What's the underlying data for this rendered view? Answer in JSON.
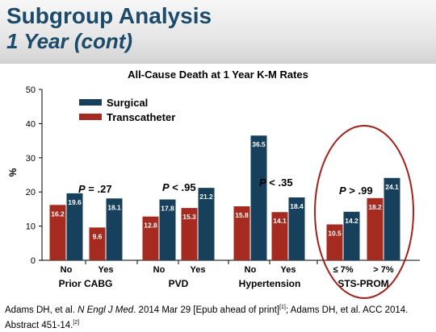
{
  "header": {
    "title": "Subgroup Analysis",
    "subtitle": "1 Year (cont)"
  },
  "colors": {
    "surgical": "#17405c",
    "transcatheter": "#a52a1f",
    "title": "#1b4a6b",
    "highlight_ellipse": "#a2221a"
  },
  "chart_data": {
    "type": "bar",
    "title": "All-Cause Death at 1 Year K-M Rates",
    "ylabel": "%",
    "xlabel": "",
    "ylim": [
      0,
      50
    ],
    "yticks": [
      "0",
      "10",
      "20",
      "30",
      "40",
      "50"
    ],
    "grid": false,
    "legend_placement": "top-left",
    "categories": [
      "No",
      "Yes",
      "No",
      "Yes",
      "No",
      "Yes",
      "≤ 7%",
      "> 7%"
    ],
    "groups": [
      {
        "label": "Prior CABG",
        "p_prefix": "P",
        "p_value": " = .27"
      },
      {
        "label": "PVD",
        "p_prefix": "P",
        "p_value": " < .95"
      },
      {
        "label": "Hypertension",
        "p_prefix": "P",
        "p_value": " < .35"
      },
      {
        "label": "STS-PROM",
        "p_prefix": "P",
        "p_value": " > .99"
      }
    ],
    "series": [
      {
        "name": "Transcatheter",
        "values": [
          16.2,
          9.6,
          12.8,
          15.3,
          15.8,
          14.1,
          10.5,
          18.2
        ],
        "labels": [
          "16.2",
          "9.6",
          "12.8",
          "15.3",
          "15.8",
          "14.1",
          "10.5",
          "18.2"
        ]
      },
      {
        "name": "Surgical",
        "values": [
          19.6,
          18.1,
          17.8,
          21.2,
          36.5,
          18.4,
          14.2,
          24.1
        ],
        "labels": [
          "19.6",
          "18.1",
          "17.8",
          "21.2",
          "36.5",
          "18.4",
          "14.2",
          "24.1"
        ]
      }
    ],
    "legend": [
      "Surgical",
      "Transcatheter"
    ]
  },
  "citation": {
    "part1": "Adams DH, et al. ",
    "journal": "N Engl J Med",
    "part2": ". 2014 Mar 29 [Epub ahead of print]",
    "ref1": "[1]",
    "part3": "; Adams DH, et al. ACC 2014. Abstract 451-14.",
    "ref2": "[2]"
  }
}
